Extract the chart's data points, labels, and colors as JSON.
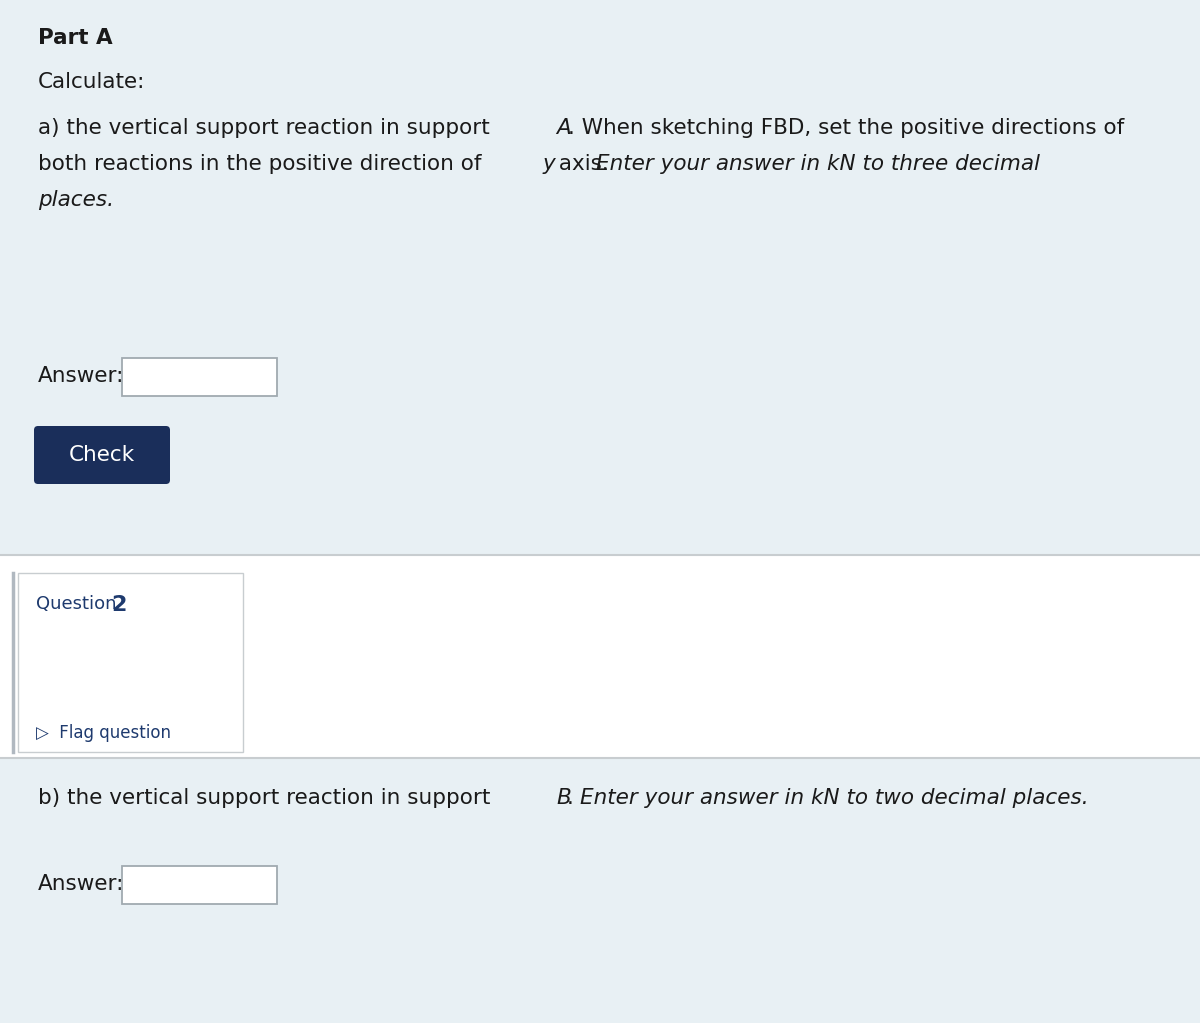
{
  "bg_light_blue": "#e8f0f4",
  "bg_white": "#ffffff",
  "text_dark": "#1a1a1a",
  "text_blue": "#1e3a6e",
  "check_btn_color": "#1a2e5a",
  "check_btn_text": "#ffffff",
  "input_border": "#a0aab0",
  "sidebar_border": "#c8cdd0",
  "separator_color": "#c8cdd0",
  "part_a_label": "Part A",
  "calculate_label": "Calculate:",
  "answer_label": "Answer:",
  "check_button_text": "Check",
  "question_text": "Question ",
  "question_number": "2",
  "flag_symbol": "▷",
  "flag_text": "Flag question",
  "answer_label_b": "Answer:",
  "font_size": 15.5,
  "font_size_small": 13
}
